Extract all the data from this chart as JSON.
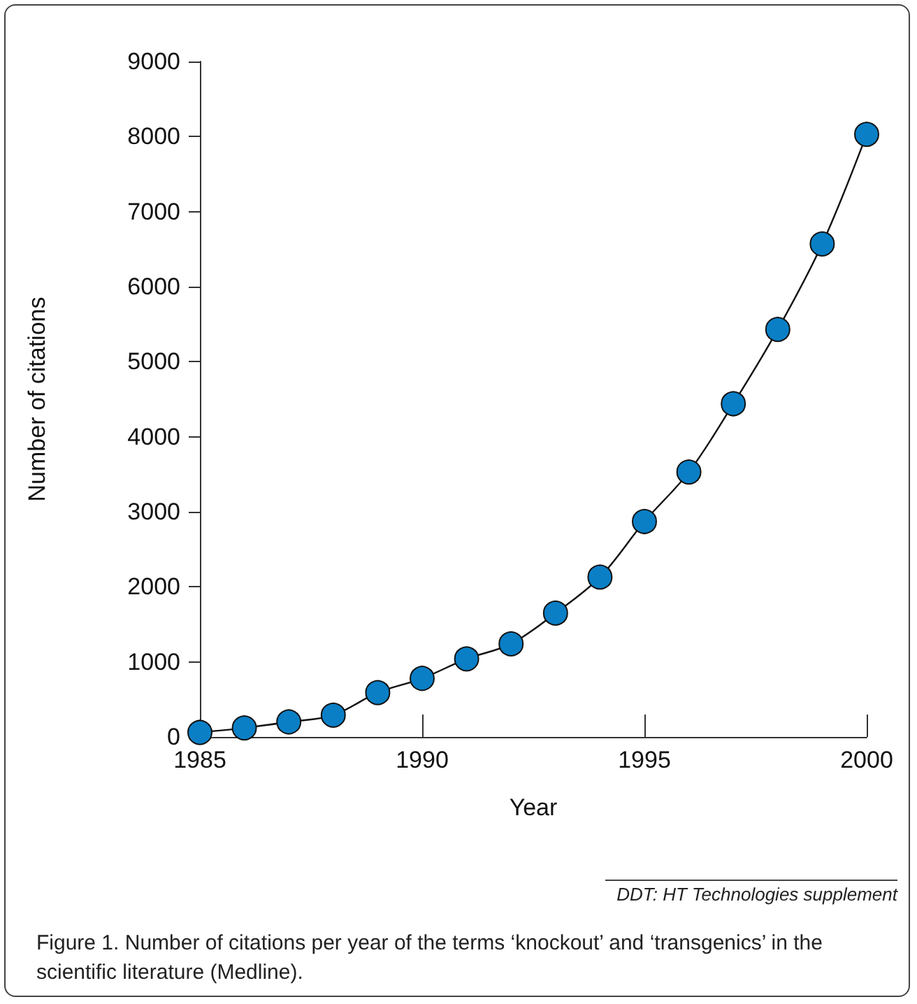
{
  "chart_data": {
    "type": "line",
    "xlabel": "Year",
    "ylabel": "Number of citations",
    "x": [
      1985,
      1986,
      1987,
      1988,
      1989,
      1990,
      1991,
      1992,
      1993,
      1994,
      1995,
      1996,
      1997,
      1998,
      1999,
      2000
    ],
    "series": [
      {
        "color": "#0a7fc6",
        "values": [
          60,
          120,
          200,
          290,
          590,
          780,
          1040,
          1240,
          1650,
          2130,
          2870,
          3530,
          4440,
          5430,
          6570,
          8030
        ]
      }
    ],
    "xlim": [
      1985,
      2000
    ],
    "xticks": [
      1985,
      1990,
      1995,
      2000
    ],
    "ylim": [
      0,
      9000
    ],
    "yticks": [
      0,
      1000,
      2000,
      3000,
      4000,
      5000,
      6000,
      7000,
      8000,
      9000
    ],
    "grid": false,
    "marker": "circle",
    "line_style": "solid",
    "annotations": [
      "DDT: HT Technologies supplement",
      "Figure 1. Number of citations per year of the terms ‘knockout’ and ‘transgenics’ in the scientific literature (Medline)."
    ]
  }
}
